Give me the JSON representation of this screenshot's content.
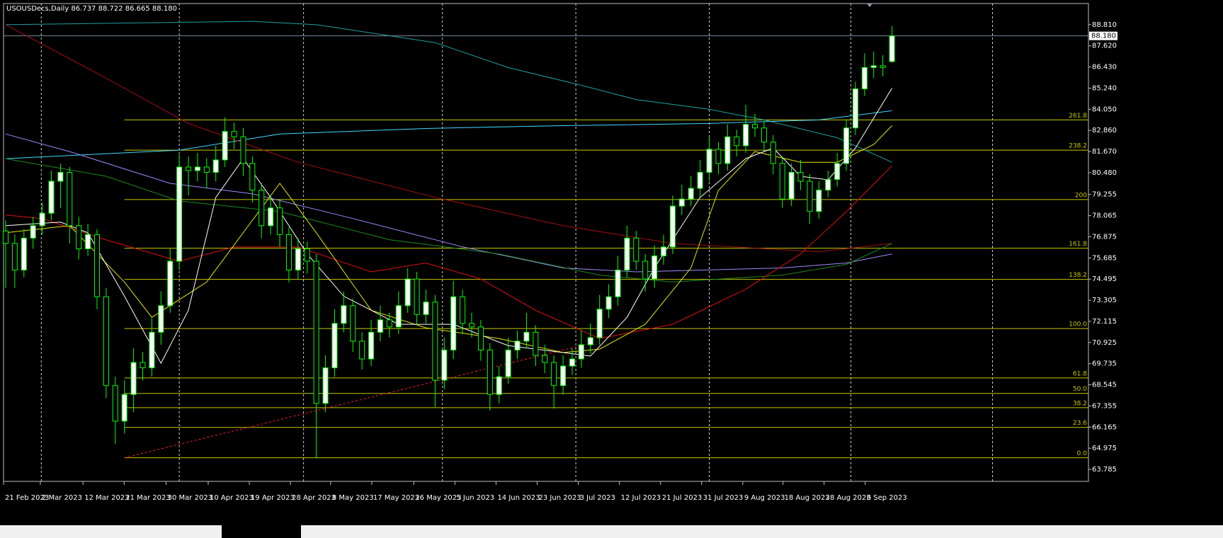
{
  "chart_data": {
    "type": "candlestick",
    "title": "USOUSDecs,Daily  86.737 88.722 86.665 88.180",
    "xlim": [
      -0.23,
      118.5
    ],
    "ylim": [
      63.11,
      90.0
    ],
    "yticks": [
      {
        "value": 88.81,
        "label": "88.810"
      },
      {
        "value": 87.62,
        "label": "87.620"
      },
      {
        "value": 86.43,
        "label": "86.430"
      },
      {
        "value": 85.24,
        "label": "85.240"
      },
      {
        "value": 84.05,
        "label": "84.050"
      },
      {
        "value": 82.86,
        "label": "82.860"
      },
      {
        "value": 81.67,
        "label": "81.670"
      },
      {
        "value": 80.48,
        "label": "80.480"
      },
      {
        "value": 79.255,
        "label": "79.255"
      },
      {
        "value": 78.065,
        "label": "78.065"
      },
      {
        "value": 76.875,
        "label": "76.875"
      },
      {
        "value": 75.685,
        "label": "75.685"
      },
      {
        "value": 74.495,
        "label": "74.495"
      },
      {
        "value": 73.305,
        "label": "73.305"
      },
      {
        "value": 72.115,
        "label": "72.115"
      },
      {
        "value": 70.925,
        "label": "70.925"
      },
      {
        "value": 69.735,
        "label": "69.735"
      },
      {
        "value": 68.545,
        "label": "68.545"
      },
      {
        "value": 67.355,
        "label": "67.355"
      },
      {
        "value": 66.165,
        "label": "66.165"
      },
      {
        "value": 64.975,
        "label": "64.975"
      },
      {
        "value": 63.785,
        "label": "63.785"
      }
    ],
    "xticks": [
      {
        "value": 0,
        "label": "21 Feb 2023"
      },
      {
        "value": 4.03,
        "label": "2 Mar 2023"
      },
      {
        "value": 8.7,
        "label": "12 Mar 2023"
      },
      {
        "value": 13.2,
        "label": "21 Mar 2023"
      },
      {
        "value": 17.8,
        "label": "30 Mar 2023"
      },
      {
        "value": 22.4,
        "label": "10 Apr 2023"
      },
      {
        "value": 26.9,
        "label": "19 Apr 2023"
      },
      {
        "value": 31.4,
        "label": "28 Apr 2023"
      },
      {
        "value": 35.8,
        "label": "8 May 2023"
      },
      {
        "value": 40.3,
        "label": "17 May 2023"
      },
      {
        "value": 44.9,
        "label": "26 May 2023"
      },
      {
        "value": 49.4,
        "label": "5 Jun 2023"
      },
      {
        "value": 53.9,
        "label": "14 Jun 2023"
      },
      {
        "value": 58.4,
        "label": "23 Jun 2023"
      },
      {
        "value": 62.9,
        "label": "3 Jul 2023"
      },
      {
        "value": 67.4,
        "label": "12 Jul 2023"
      },
      {
        "value": 71.9,
        "label": "21 Jul 2023"
      },
      {
        "value": 76.4,
        "label": "31 Jul 2023"
      },
      {
        "value": 80.9,
        "label": "9 Aug 2023"
      },
      {
        "value": 85.3,
        "label": "18 Aug 2023"
      },
      {
        "value": 89.8,
        "label": "28 Aug 2023"
      },
      {
        "value": 94.3,
        "label": "6 Sep 2023"
      }
    ],
    "grid": true,
    "xgrid": [
      3.9,
      19.0,
      32.6,
      47.8,
      62.4,
      77.0,
      92.5,
      108.0
    ],
    "up_color": "#ffffff",
    "down_color": "#000000",
    "wick_color": "#00ff00",
    "candles": [
      [
        77.2,
        77.8,
        74.0,
        76.5
      ],
      [
        76.5,
        77.0,
        74.0,
        75.0
      ],
      [
        75.0,
        77.3,
        74.6,
        76.8
      ],
      [
        76.8,
        78.0,
        76.2,
        77.5
      ],
      [
        77.5,
        78.8,
        77.0,
        78.2
      ],
      [
        78.2,
        80.6,
        77.8,
        80.0
      ],
      [
        80.0,
        81.0,
        78.5,
        80.5
      ],
      [
        80.5,
        80.8,
        76.5,
        77.5
      ],
      [
        77.5,
        78.0,
        75.6,
        76.2
      ],
      [
        76.2,
        77.6,
        75.8,
        77.0
      ],
      [
        77.0,
        77.3,
        72.8,
        73.5
      ],
      [
        73.5,
        74.0,
        67.8,
        68.5
      ],
      [
        68.5,
        69.0,
        65.2,
        66.5
      ],
      [
        66.5,
        68.8,
        65.8,
        68.0
      ],
      [
        68.0,
        70.6,
        67.0,
        69.8
      ],
      [
        69.8,
        70.4,
        68.8,
        69.5
      ],
      [
        69.5,
        72.3,
        69.0,
        71.5
      ],
      [
        71.5,
        73.8,
        70.8,
        73.0
      ],
      [
        73.0,
        76.2,
        72.6,
        75.5
      ],
      [
        75.5,
        81.5,
        75.0,
        80.8
      ],
      [
        80.8,
        81.4,
        79.2,
        80.6
      ],
      [
        80.6,
        81.6,
        80.0,
        80.8
      ],
      [
        80.8,
        81.3,
        79.6,
        80.5
      ],
      [
        80.5,
        82.0,
        80.0,
        81.2
      ],
      [
        81.2,
        83.6,
        80.8,
        82.8
      ],
      [
        82.8,
        83.3,
        81.8,
        82.5
      ],
      [
        82.5,
        83.0,
        80.3,
        81.0
      ],
      [
        81.0,
        81.4,
        78.8,
        79.5
      ],
      [
        79.5,
        79.9,
        76.8,
        77.5
      ],
      [
        77.5,
        79.2,
        77.0,
        78.5
      ],
      [
        78.5,
        79.0,
        76.3,
        77.0
      ],
      [
        77.0,
        77.4,
        74.3,
        75.0
      ],
      [
        75.0,
        76.8,
        74.5,
        76.2
      ],
      [
        76.2,
        76.6,
        74.8,
        75.5
      ],
      [
        75.5,
        75.9,
        64.4,
        67.5
      ],
      [
        67.5,
        70.2,
        67.0,
        69.5
      ],
      [
        69.5,
        72.8,
        69.0,
        72.0
      ],
      [
        72.0,
        73.8,
        71.5,
        73.0
      ],
      [
        73.0,
        73.4,
        70.4,
        71.0
      ],
      [
        71.0,
        71.5,
        69.4,
        70.0
      ],
      [
        70.0,
        72.2,
        69.6,
        71.5
      ],
      [
        71.5,
        73.0,
        71.0,
        72.2
      ],
      [
        72.2,
        72.6,
        71.2,
        71.8
      ],
      [
        71.8,
        73.8,
        71.4,
        73.0
      ],
      [
        73.0,
        75.1,
        72.6,
        74.5
      ],
      [
        74.5,
        74.9,
        71.9,
        72.5
      ],
      [
        72.5,
        73.9,
        72.0,
        73.2
      ],
      [
        73.2,
        73.6,
        67.3,
        68.8
      ],
      [
        68.8,
        71.2,
        68.3,
        70.5
      ],
      [
        70.5,
        74.4,
        70.0,
        73.5
      ],
      [
        73.5,
        73.9,
        71.4,
        72.0
      ],
      [
        72.0,
        72.6,
        71.2,
        71.8
      ],
      [
        71.8,
        72.2,
        69.9,
        70.5
      ],
      [
        70.5,
        70.9,
        67.1,
        68.0
      ],
      [
        68.0,
        69.6,
        67.5,
        69.0
      ],
      [
        69.0,
        71.2,
        68.6,
        70.5
      ],
      [
        70.5,
        71.6,
        70.0,
        71.0
      ],
      [
        71.0,
        72.6,
        70.6,
        71.5
      ],
      [
        71.5,
        71.9,
        69.6,
        70.2
      ],
      [
        70.2,
        70.8,
        69.2,
        69.8
      ],
      [
        69.8,
        70.2,
        67.2,
        68.5
      ],
      [
        68.5,
        70.2,
        68.0,
        69.6
      ],
      [
        69.6,
        70.6,
        69.1,
        70.0
      ],
      [
        70.0,
        71.6,
        69.5,
        70.8
      ],
      [
        70.8,
        72.0,
        70.3,
        71.2
      ],
      [
        71.2,
        73.6,
        70.8,
        72.8
      ],
      [
        72.8,
        74.2,
        72.3,
        73.5
      ],
      [
        73.5,
        75.8,
        73.0,
        75.0
      ],
      [
        75.0,
        77.5,
        74.6,
        76.8
      ],
      [
        76.8,
        77.2,
        75.0,
        75.5
      ],
      [
        75.5,
        75.9,
        73.8,
        74.5
      ],
      [
        74.5,
        76.4,
        74.0,
        75.8
      ],
      [
        75.8,
        77.0,
        75.3,
        76.3
      ],
      [
        76.3,
        79.2,
        75.9,
        78.6
      ],
      [
        78.6,
        79.8,
        78.1,
        79.0
      ],
      [
        79.0,
        80.3,
        78.6,
        79.6
      ],
      [
        79.6,
        81.2,
        79.1,
        80.5
      ],
      [
        80.5,
        82.5,
        80.0,
        81.8
      ],
      [
        81.8,
        82.2,
        80.4,
        81.0
      ],
      [
        81.0,
        83.2,
        80.6,
        82.5
      ],
      [
        82.5,
        82.9,
        81.4,
        82.0
      ],
      [
        82.0,
        84.3,
        81.6,
        83.2
      ],
      [
        83.2,
        83.8,
        82.5,
        83.0
      ],
      [
        83.0,
        83.4,
        81.7,
        82.2
      ],
      [
        82.2,
        82.6,
        80.4,
        81.0
      ],
      [
        81.0,
        81.4,
        78.5,
        79.0
      ],
      [
        79.0,
        81.0,
        78.6,
        80.5
      ],
      [
        80.5,
        81.2,
        79.5,
        80.0
      ],
      [
        80.0,
        80.4,
        77.6,
        78.3
      ],
      [
        78.3,
        80.0,
        77.9,
        79.5
      ],
      [
        79.5,
        80.6,
        79.1,
        80.1
      ],
      [
        80.1,
        81.6,
        79.7,
        81.0
      ],
      [
        81.0,
        83.5,
        80.6,
        83.0
      ],
      [
        83.0,
        85.6,
        82.6,
        85.2
      ],
      [
        85.2,
        87.2,
        84.8,
        86.4
      ],
      [
        86.4,
        87.3,
        85.8,
        86.5
      ],
      [
        86.5,
        87.1,
        85.9,
        86.4
      ],
      [
        86.737,
        88.722,
        86.665,
        88.18
      ]
    ],
    "lines": [
      {
        "color": "#1fa0a0",
        "x": [
          0,
          27,
          34,
          47,
          55,
          63,
          69,
          77,
          83,
          91,
          97
        ],
        "values": [
          88.81,
          89.0,
          88.81,
          87.8,
          86.4,
          85.4,
          84.6,
          84.05,
          83.45,
          82.45,
          81.07
        ]
      },
      {
        "color": "#40d8ff",
        "x": [
          0,
          19,
          30,
          46,
          61,
          77,
          89,
          97
        ],
        "values": [
          81.27,
          81.75,
          82.66,
          82.97,
          83.13,
          83.25,
          83.45,
          83.97
        ]
      },
      {
        "color": "#a01010",
        "x": [
          0,
          11,
          20,
          32,
          47,
          61,
          73,
          89,
          97
        ],
        "values": [
          88.81,
          85.8,
          83.25,
          81.07,
          79.09,
          77.5,
          76.5,
          76.03,
          76.5
        ]
      },
      {
        "color": "#9a8cff",
        "x": [
          0,
          7,
          18,
          27,
          38,
          50,
          61,
          69,
          85,
          92,
          97
        ],
        "values": [
          82.66,
          81.67,
          79.88,
          79.29,
          77.9,
          76.31,
          75.12,
          74.9,
          75.12,
          75.4,
          75.91
        ]
      },
      {
        "color": "#1e8c1e",
        "x": [
          0,
          11,
          19,
          30,
          42,
          54,
          65,
          73,
          85,
          92,
          97
        ],
        "values": [
          81.27,
          80.28,
          78.89,
          78.29,
          76.71,
          75.91,
          74.72,
          74.33,
          74.72,
          75.32,
          76.5
        ]
      },
      {
        "color": "#e01010",
        "x": [
          0,
          4,
          11,
          19,
          25,
          32,
          40,
          46,
          52,
          58,
          65,
          73,
          81,
          87,
          92,
          97
        ],
        "values": [
          78.1,
          77.9,
          76.7,
          75.5,
          76.3,
          76.3,
          74.9,
          75.4,
          74.5,
          72.74,
          71.15,
          71.95,
          73.93,
          75.91,
          78.29,
          80.87
        ]
      },
      {
        "color": "#e6e600",
        "x": [
          0,
          7,
          13,
          16,
          22,
          30,
          34,
          40,
          46,
          54,
          61,
          65,
          70,
          75,
          78,
          82,
          87,
          91,
          95,
          97
        ],
        "values": [
          77.1,
          77.5,
          74.33,
          72.34,
          74.33,
          79.88,
          77.1,
          72.74,
          71.75,
          71.15,
          70.36,
          70.55,
          71.95,
          75.12,
          79.48,
          81.67,
          81.07,
          81.07,
          82.07,
          83.13
        ]
      },
      {
        "color": "#ffffff",
        "x": [
          0,
          6,
          9,
          13,
          17,
          20,
          23,
          26,
          29,
          33,
          37,
          43,
          49,
          55,
          64,
          68,
          71,
          76,
          81,
          84,
          87,
          90,
          93,
          97
        ],
        "values": [
          77.5,
          77.7,
          77.1,
          73.53,
          69.76,
          72.74,
          79.09,
          81.27,
          79.09,
          75.91,
          73.53,
          71.95,
          71.95,
          70.75,
          70.16,
          72.34,
          75.12,
          79.09,
          81.27,
          81.87,
          80.28,
          80.08,
          81.87,
          85.24
        ]
      }
    ],
    "trendline": {
      "color": "#ff2020",
      "x": [
        13,
        63
      ],
      "values": [
        64.44,
        70.75
      ]
    },
    "fibo": {
      "color": "#c8c800",
      "start": 13,
      "levels": [
        {
          "label": "261.8",
          "value": 83.45
        },
        {
          "label": "238.2",
          "value": 81.75
        },
        {
          "label": "200",
          "value": 78.97
        },
        {
          "label": "161.8",
          "value": 76.23
        },
        {
          "label": "138.2",
          "value": 74.48
        },
        {
          "label": "100.0",
          "value": 71.71
        },
        {
          "label": "61.8",
          "value": 68.93
        },
        {
          "label": "50.0",
          "value": 68.06
        },
        {
          "label": "38.2",
          "value": 67.26
        },
        {
          "label": "23.6",
          "value": 66.15
        },
        {
          "label": "0.0",
          "value": 64.44
        }
      ]
    },
    "bid": {
      "value": 88.18,
      "label": "88.180",
      "color": "#7a8a9a"
    }
  }
}
